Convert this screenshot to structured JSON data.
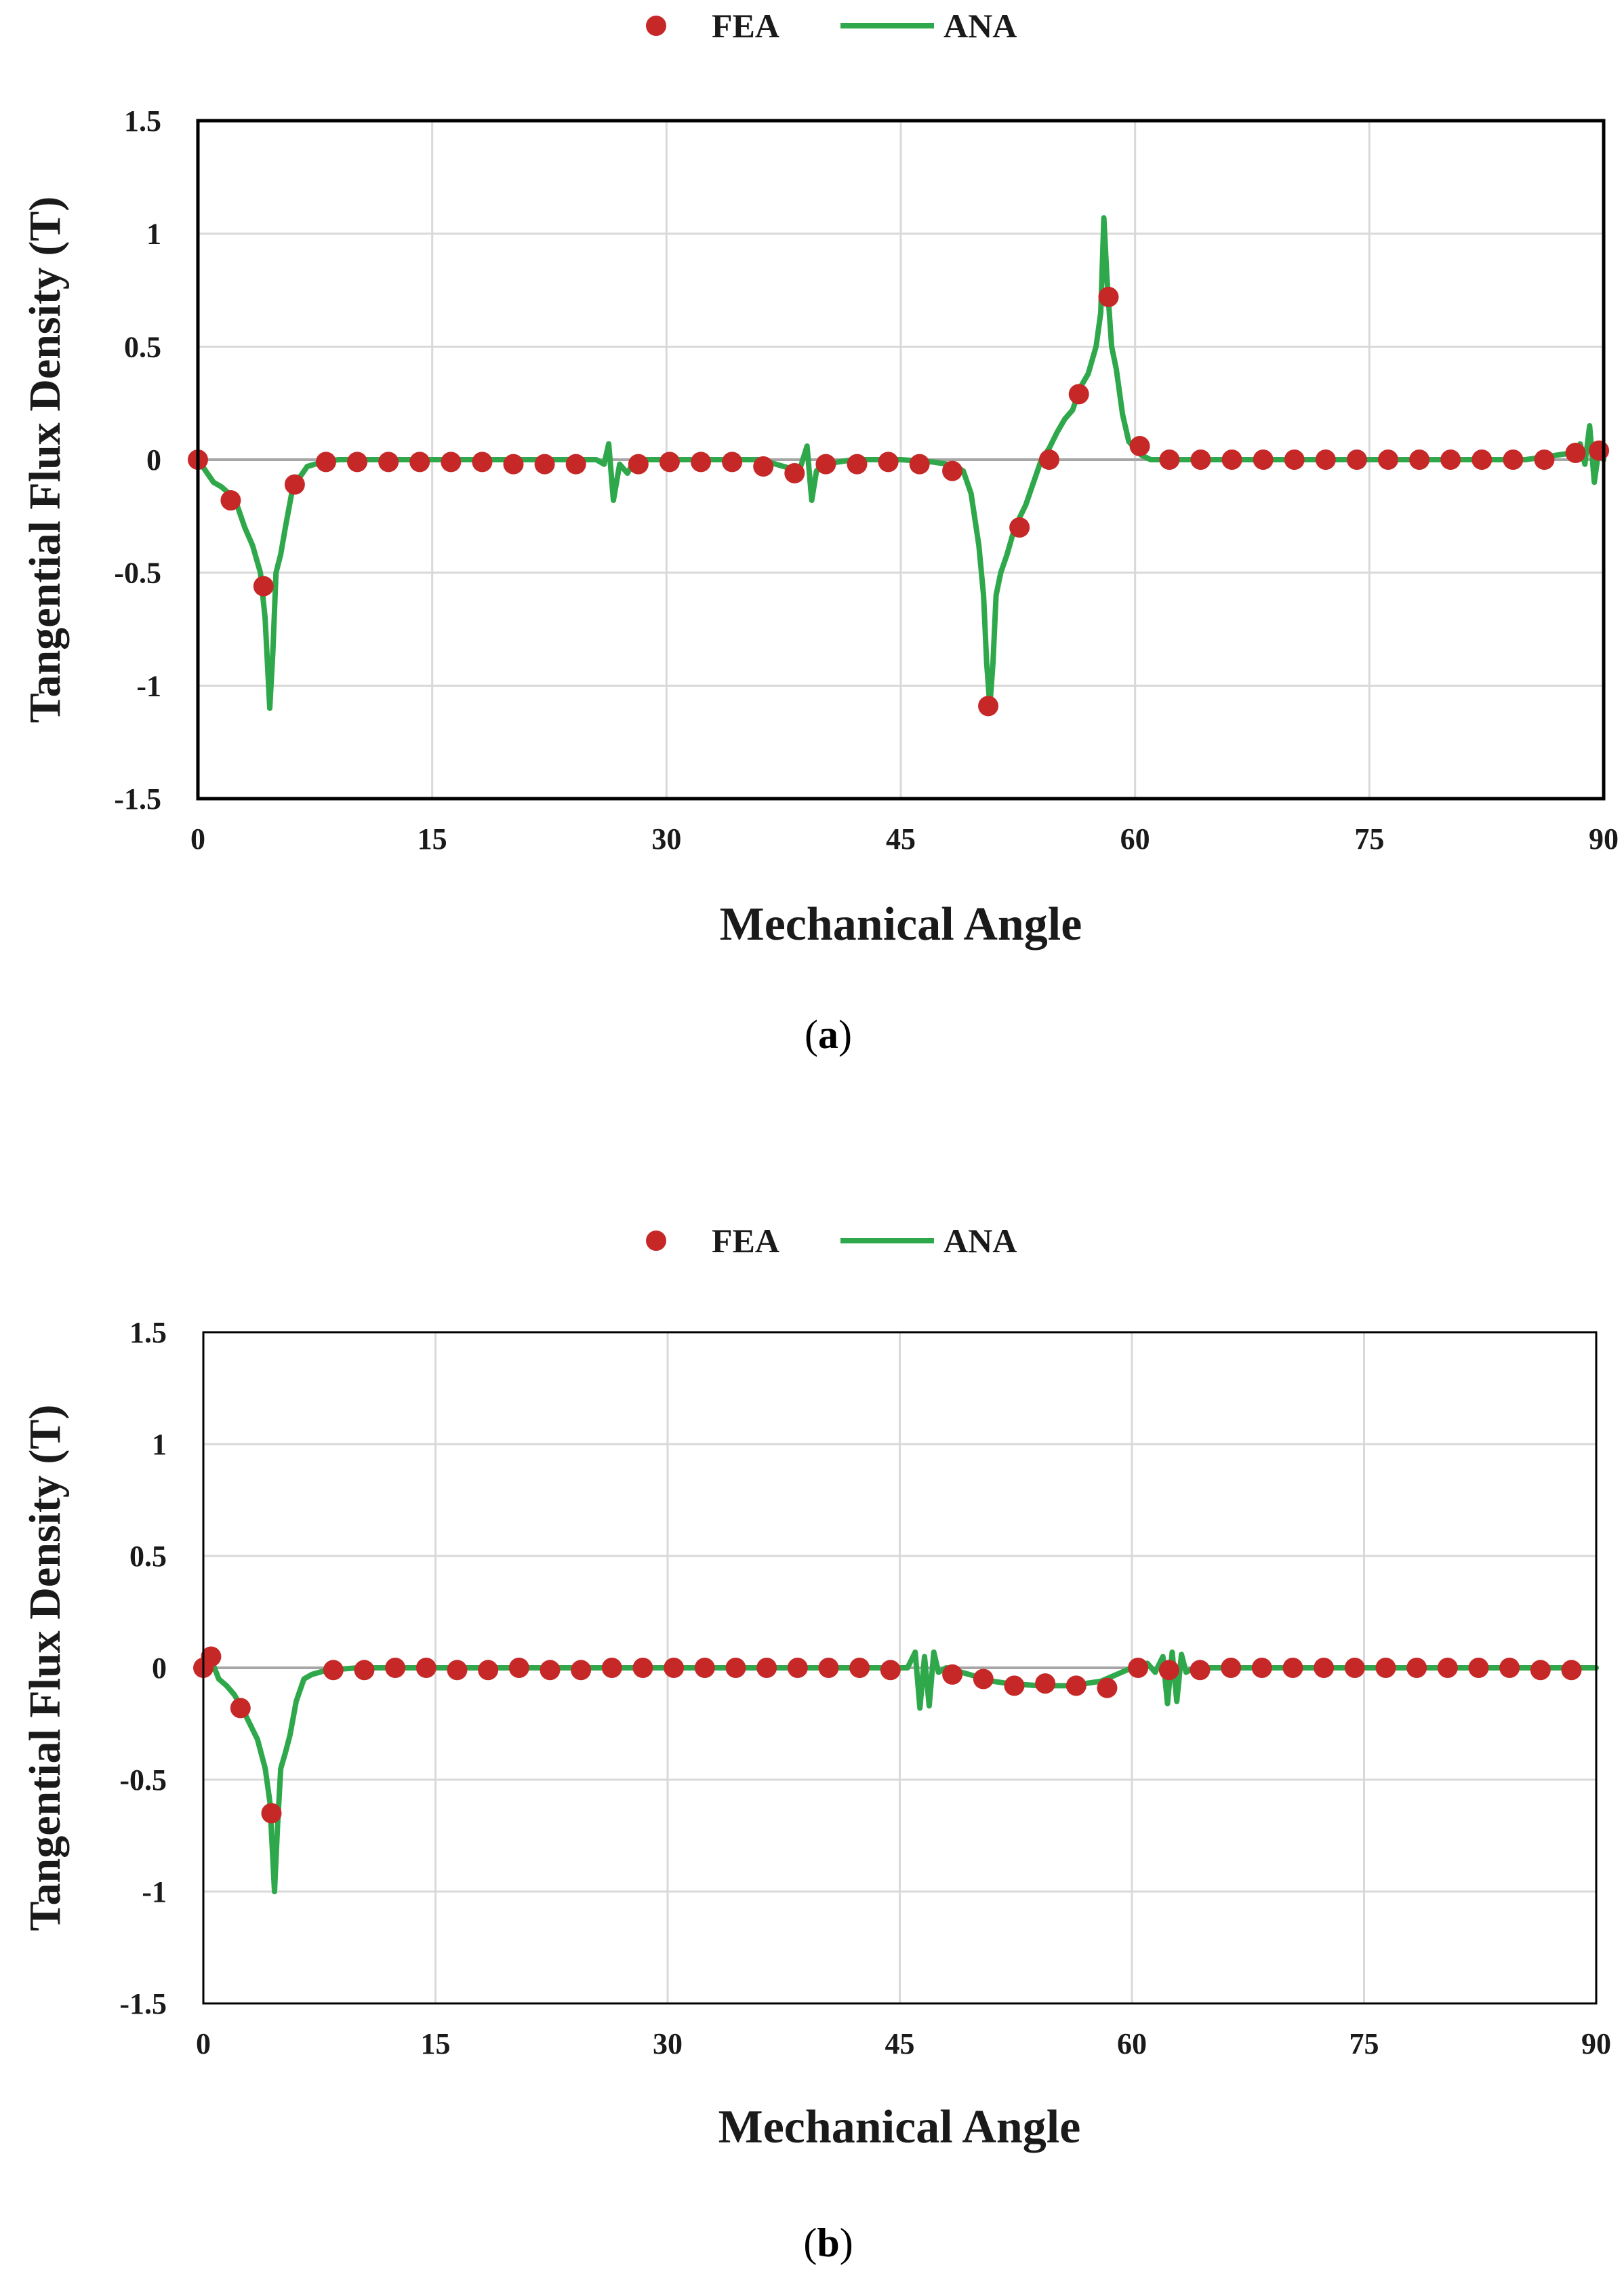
{
  "colors": {
    "fea": "#C62828",
    "ana": "#2EA84A",
    "grid": "#D9D9D9",
    "zero": "#A6A6A6",
    "axis": "#000000"
  },
  "chart_data": [
    {
      "type": "line",
      "caption_letter": "a",
      "xlabel": "Mechanical Angle",
      "ylabel": "Tangential Flux Density (T)",
      "xlim": [
        0,
        90
      ],
      "ylim": [
        -1.5,
        1.5
      ],
      "xticks": [
        0,
        15,
        30,
        45,
        60,
        75,
        90
      ],
      "xtick_labels": [
        "0",
        "15",
        "30",
        "45",
        "60",
        "75",
        "90"
      ],
      "yticks": [
        -1.5,
        -1,
        -0.5,
        0,
        0.5,
        1,
        1.5
      ],
      "ytick_labels": [
        "-1.5",
        "-1",
        "-0.5",
        "0",
        "0.5",
        "1",
        "1.5"
      ],
      "legend": {
        "position": "top-center",
        "entries": [
          "FEA",
          "ANA"
        ]
      },
      "series": [
        {
          "name": "FEA",
          "style": "markers",
          "x": [
            0,
            2.1,
            4.2,
            6.2,
            8.2,
            10.2,
            12.2,
            14.2,
            16.2,
            18.2,
            20.2,
            22.2,
            24.2,
            28.2,
            30.2,
            32.2,
            34.2,
            36.2,
            38.2,
            40.2,
            42.2,
            44.2,
            46.2,
            48.3,
            50.6,
            52.6,
            54.5,
            56.4,
            58.3,
            60.3,
            62.2,
            64.2,
            66.2,
            68.2,
            70.2,
            72.2,
            74.2,
            76.2,
            78.2,
            80.2,
            82.2,
            84.2,
            86.2,
            88.2,
            89.7
          ],
          "y": [
            0,
            -0.18,
            -0.56,
            -0.11,
            -0.01,
            -0.01,
            -0.01,
            -0.01,
            -0.01,
            -0.01,
            -0.02,
            -0.02,
            -0.02,
            -0.02,
            -0.01,
            -0.01,
            -0.01,
            -0.03,
            -0.06,
            -0.02,
            -0.02,
            -0.01,
            -0.02,
            -0.05,
            -1.09,
            -0.3,
            0.0,
            0.29,
            0.72,
            0.06,
            0.0,
            0.0,
            0.0,
            0.0,
            0.0,
            0.0,
            0.0,
            0.0,
            0.0,
            0.0,
            0.0,
            0.0,
            0.0,
            0.03,
            0.04
          ]
        },
        {
          "name": "ANA",
          "style": "line",
          "x": [
            0,
            0.5,
            1,
            1.5,
            2,
            2.5,
            3,
            3.5,
            4,
            4.3,
            4.6,
            4.8,
            5,
            5.3,
            5.6,
            6,
            6.5,
            7,
            7.5,
            8,
            9,
            12,
            18,
            24,
            25.5,
            26,
            26.3,
            26.6,
            27,
            27.5,
            28,
            30,
            33,
            36,
            38.5,
            39,
            39.3,
            39.6,
            40,
            42,
            45,
            47,
            48,
            48.5,
            49,
            49.5,
            50,
            50.3,
            50.5,
            50.7,
            50.9,
            51.1,
            51.4,
            51.8,
            52.3,
            53,
            53.5,
            54,
            54.5,
            55,
            55.5,
            56,
            56.5,
            57,
            57.5,
            57.8,
            58,
            58.2,
            58.5,
            58.8,
            59.2,
            59.6,
            60,
            60.4,
            61,
            62,
            65,
            70,
            75,
            80,
            85,
            87,
            88,
            88.5,
            88.8,
            89.1,
            89.4,
            89.7,
            90
          ],
          "y": [
            0,
            -0.05,
            -0.1,
            -0.12,
            -0.15,
            -0.2,
            -0.3,
            -0.38,
            -0.5,
            -0.7,
            -1.1,
            -0.85,
            -0.5,
            -0.42,
            -0.3,
            -0.15,
            -0.08,
            -0.03,
            -0.02,
            -0.01,
            0,
            0,
            0,
            0,
            0,
            -0.02,
            0.07,
            -0.18,
            -0.02,
            -0.06,
            0,
            0,
            0,
            0,
            -0.05,
            0.06,
            -0.18,
            -0.05,
            -0.02,
            0,
            0,
            -0.01,
            -0.02,
            -0.03,
            -0.05,
            -0.15,
            -0.38,
            -0.6,
            -0.9,
            -1.09,
            -0.9,
            -0.6,
            -0.5,
            -0.42,
            -0.3,
            -0.2,
            -0.1,
            0,
            0.05,
            0.12,
            0.18,
            0.22,
            0.32,
            0.38,
            0.5,
            0.65,
            1.07,
            0.8,
            0.5,
            0.4,
            0.2,
            0.08,
            0.05,
            0.02,
            0,
            0,
            0,
            0,
            0,
            0,
            0,
            0.02,
            0.03,
            0.07,
            -0.02,
            0.15,
            -0.1,
            0.05,
            0
          ]
        }
      ]
    },
    {
      "type": "line",
      "caption_letter": "b",
      "xlabel": "Mechanical Angle",
      "ylabel": "Tangential Flux Density (T)",
      "xlim": [
        0,
        90
      ],
      "ylim": [
        -1.5,
        1.5
      ],
      "xticks": [
        0,
        15,
        30,
        45,
        60,
        75,
        90
      ],
      "xtick_labels": [
        "0",
        "15",
        "30",
        "45",
        "60",
        "75",
        "90"
      ],
      "yticks": [
        -1.5,
        -1,
        -0.5,
        0,
        0.5,
        1,
        1.5
      ],
      "ytick_labels": [
        "-1.5",
        "-1",
        "-0.5",
        "0",
        "0.5",
        "1",
        "1.5"
      ],
      "legend": {
        "position": "top-center",
        "entries": [
          "FEA",
          "ANA"
        ]
      },
      "series": [
        {
          "name": "FEA",
          "style": "markers",
          "x": [
            0,
            0.5,
            2.4,
            4.4,
            8.4,
            10.4,
            12.4,
            14.4,
            16.4,
            18.4,
            20.4,
            22.4,
            24.4,
            26.4,
            28.4,
            30.4,
            32.4,
            34.4,
            36.4,
            38.4,
            40.4,
            42.4,
            44.4,
            48.4,
            50.4,
            52.4,
            54.4,
            56.4,
            58.4,
            60.4,
            62.4,
            64.4,
            66.4,
            68.4,
            70.4,
            72.4,
            74.4,
            76.4,
            78.4,
            80.4,
            82.4,
            84.4,
            86.4,
            88.4
          ],
          "y": [
            0,
            0.05,
            -0.18,
            -0.65,
            -0.01,
            -0.01,
            0,
            0,
            -0.01,
            -0.01,
            0,
            -0.01,
            -0.01,
            0,
            0,
            0,
            0,
            0,
            0,
            0,
            0,
            0,
            -0.01,
            -0.03,
            -0.05,
            -0.08,
            -0.07,
            -0.08,
            -0.09,
            0.0,
            -0.01,
            -0.01,
            0,
            0,
            0,
            0,
            0,
            0,
            0,
            0,
            0,
            0,
            -0.01,
            -0.01
          ]
        },
        {
          "name": "ANA",
          "style": "line",
          "x": [
            0,
            0.3,
            0.6,
            1,
            1.5,
            2,
            2.5,
            3,
            3.5,
            4,
            4.3,
            4.6,
            4.8,
            5,
            5.3,
            5.6,
            6,
            6.5,
            7,
            8,
            10,
            20,
            30,
            40,
            44,
            45.5,
            46,
            46.3,
            46.6,
            46.9,
            47.2,
            47.5,
            48,
            49,
            50,
            51,
            52,
            54,
            56,
            57,
            58,
            59,
            60,
            61,
            61.5,
            62,
            62.3,
            62.6,
            62.9,
            63.2,
            63.5,
            64,
            66,
            70,
            80,
            90
          ],
          "y": [
            0,
            0.05,
            0.02,
            -0.05,
            -0.08,
            -0.12,
            -0.18,
            -0.25,
            -0.32,
            -0.45,
            -0.6,
            -1.0,
            -0.7,
            -0.45,
            -0.38,
            -0.3,
            -0.15,
            -0.05,
            -0.03,
            -0.01,
            0,
            0,
            0,
            0,
            0,
            0,
            0.07,
            -0.18,
            0.05,
            -0.17,
            0.07,
            -0.02,
            0,
            -0.02,
            -0.04,
            -0.06,
            -0.07,
            -0.08,
            -0.08,
            -0.07,
            -0.06,
            -0.03,
            0,
            0.02,
            -0.02,
            0.05,
            -0.16,
            0.07,
            -0.15,
            0.06,
            -0.02,
            0,
            0,
            0,
            0,
            0
          ]
        }
      ]
    }
  ]
}
